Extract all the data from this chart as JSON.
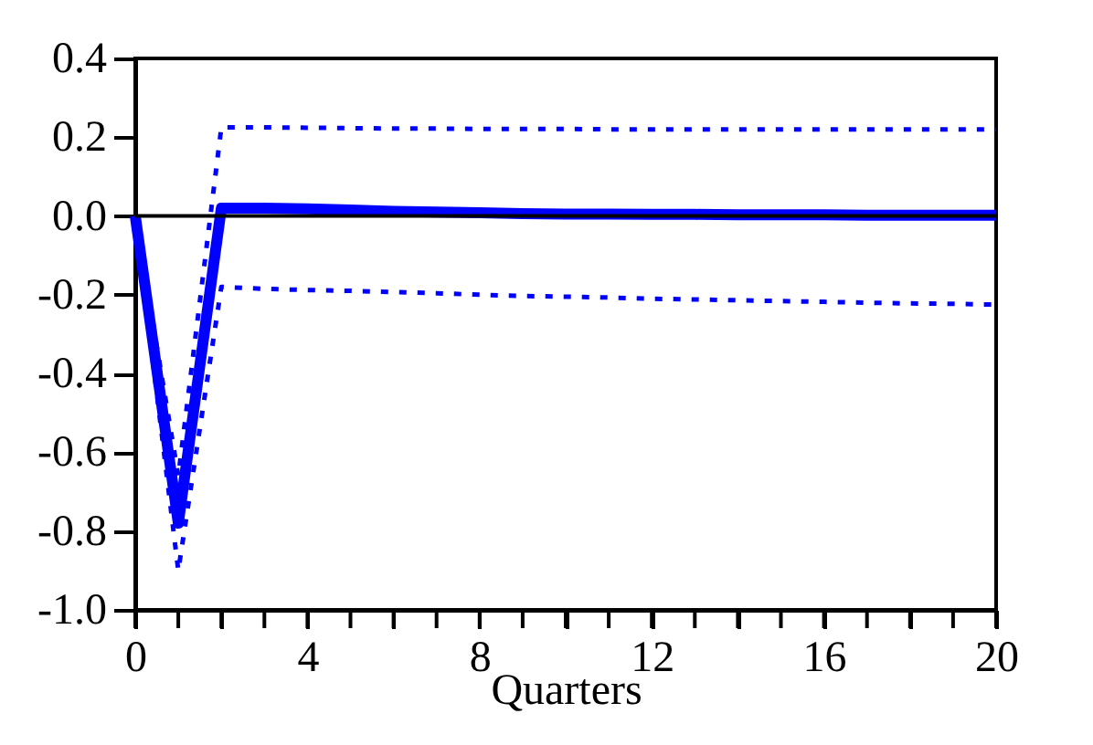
{
  "chart_data": {
    "type": "line",
    "xlabel": "Quarters",
    "x": [
      0,
      1,
      2,
      3,
      4,
      5,
      6,
      7,
      8,
      9,
      10,
      11,
      12,
      13,
      14,
      15,
      16,
      17,
      18,
      19,
      20
    ],
    "series": [
      {
        "color": "#0000ff",
        "line_style": "dashed",
        "values": [
          0,
          -0.66,
          0.225,
          0.225,
          0.224,
          0.223,
          0.222,
          0.222,
          0.221,
          0.221,
          0.221,
          0.22,
          0.22,
          0.22,
          0.22,
          0.22,
          0.22,
          0.22,
          0.22,
          0.22,
          0.22
        ]
      },
      {
        "color": "#0000ff",
        "line_style": "dashed",
        "values": [
          0,
          -0.9,
          -0.18,
          -0.185,
          -0.188,
          -0.19,
          -0.193,
          -0.196,
          -0.2,
          -0.203,
          -0.205,
          -0.207,
          -0.21,
          -0.212,
          -0.214,
          -0.216,
          -0.218,
          -0.22,
          -0.222,
          -0.223,
          -0.225
        ]
      },
      {
        "color": "#0000ff",
        "line_style": "solid",
        "values": [
          0,
          -0.78,
          0.02,
          0.02,
          0.018,
          0.015,
          0.012,
          0.01,
          0.008,
          0.006,
          0.005,
          0.005,
          0.004,
          0.004,
          0.003,
          0.003,
          0.003,
          0.002,
          0.002,
          0.002,
          0.002
        ]
      }
    ],
    "xlim": [
      0,
      20
    ],
    "xticks": [
      0,
      {
        "value": 1,
        "label": null
      },
      {
        "value": 2,
        "label": null
      },
      {
        "value": 3,
        "label": null
      },
      4,
      {
        "value": 5,
        "label": null
      },
      {
        "value": 6,
        "label": null
      },
      {
        "value": 7,
        "label": null
      },
      8,
      {
        "value": 9,
        "label": null
      },
      {
        "value": 10,
        "label": null
      },
      {
        "value": 11,
        "label": null
      },
      12,
      {
        "value": 13,
        "label": null
      },
      {
        "value": 14,
        "label": null
      },
      {
        "value": 15,
        "label": null
      },
      16,
      {
        "value": 17,
        "label": null
      },
      {
        "value": 18,
        "label": null
      },
      {
        "value": 19,
        "label": null
      },
      20
    ],
    "ylim": [
      -1.0,
      0.4
    ],
    "yticks": [
      {
        "value": -1.0,
        "label": "-1.0"
      },
      {
        "value": -0.8,
        "label": "-0.8"
      },
      {
        "value": -0.6,
        "label": "-0.6"
      },
      {
        "value": -0.4,
        "label": "-0.4"
      },
      {
        "value": -0.2,
        "label": "-0.2"
      },
      {
        "value": 0,
        "label": "0.0"
      },
      {
        "value": 0.2,
        "label": "0.2"
      },
      {
        "value": 0.4,
        "label": "0.4"
      }
    ],
    "ref_lines": [
      {
        "axis": "y",
        "value": 0,
        "color": "#000000"
      }
    ],
    "grid": false,
    "marker": "none"
  }
}
